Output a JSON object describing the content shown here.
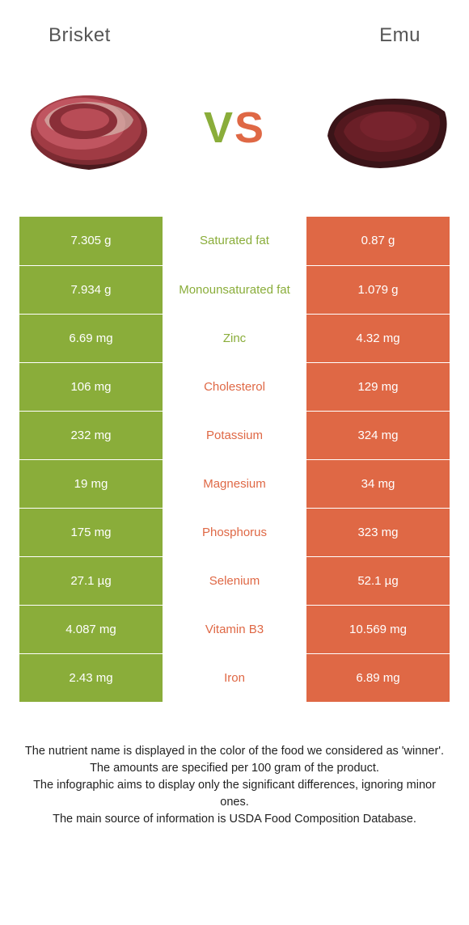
{
  "header": {
    "left_title": "Brisket",
    "right_title": "Emu"
  },
  "hero": {
    "vs_v": "V",
    "vs_s": "S",
    "left_color": "#8aad3a",
    "right_color": "#df6845"
  },
  "table": {
    "left_bg": "#8aad3a",
    "right_bg": "#df6845",
    "rows": [
      {
        "left": "7.305 g",
        "label": "Saturated fat",
        "right": "0.87 g",
        "winner": "left"
      },
      {
        "left": "7.934 g",
        "label": "Monounsaturated fat",
        "right": "1.079 g",
        "winner": "left"
      },
      {
        "left": "6.69 mg",
        "label": "Zinc",
        "right": "4.32 mg",
        "winner": "left"
      },
      {
        "left": "106 mg",
        "label": "Cholesterol",
        "right": "129 mg",
        "winner": "right"
      },
      {
        "left": "232 mg",
        "label": "Potassium",
        "right": "324 mg",
        "winner": "right"
      },
      {
        "left": "19 mg",
        "label": "Magnesium",
        "right": "34 mg",
        "winner": "right"
      },
      {
        "left": "175 mg",
        "label": "Phosphorus",
        "right": "323 mg",
        "winner": "right"
      },
      {
        "left": "27.1 µg",
        "label": "Selenium",
        "right": "52.1 µg",
        "winner": "right"
      },
      {
        "left": "4.087 mg",
        "label": "Vitamin B3",
        "right": "10.569 mg",
        "winner": "right"
      },
      {
        "left": "2.43 mg",
        "label": "Iron",
        "right": "6.89 mg",
        "winner": "right"
      }
    ]
  },
  "footer": {
    "line1": "The nutrient name is displayed in the color of the food we considered as 'winner'.",
    "line2": "The amounts are specified per 100 gram of the product.",
    "line3": "The infographic aims to display only the significant differences, ignoring minor ones.",
    "line4": "The main source of information is USDA Food Composition Database."
  }
}
